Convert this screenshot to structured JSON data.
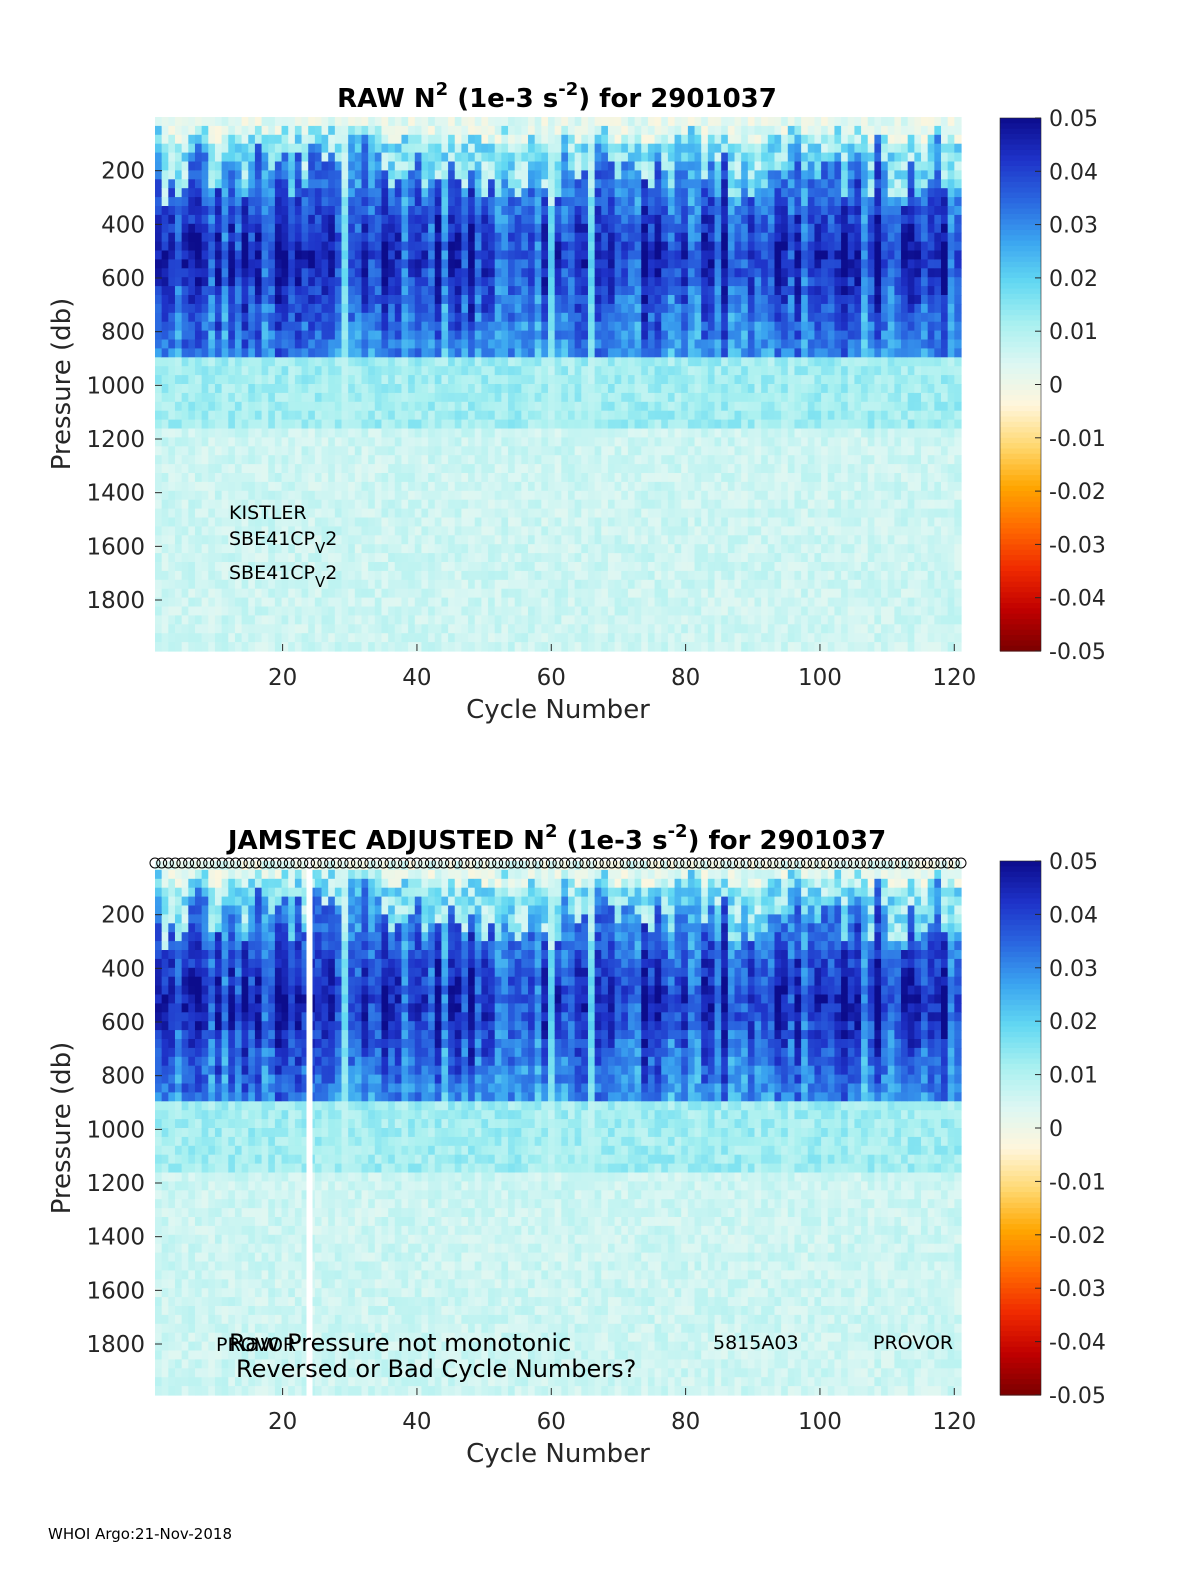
{
  "footer": "WHOI Argo:21-Nov-2018",
  "colors": {
    "colormap": [
      "#7a0000",
      "#c00000",
      "#f02a00",
      "#ff6a00",
      "#ffa600",
      "#ffd870",
      "#fff6dc",
      "#dcf7f3",
      "#a8f0f0",
      "#62d8f2",
      "#3aa4f0",
      "#2a66e0",
      "#1e32c8",
      "#0c0c8c"
    ],
    "gap_marker": "#ffffff",
    "text": "#262626"
  },
  "colorbar": {
    "ticks": [
      "0.05",
      "0.04",
      "0.03",
      "0.02",
      "0.01",
      "0",
      "-0.01",
      "-0.02",
      "-0.03",
      "-0.04",
      "-0.05"
    ],
    "range": [
      -0.05,
      0.05
    ]
  },
  "chart_data": [
    {
      "type": "heatmap",
      "title": {
        "main": "RAW N",
        "sup1": "2",
        "mid": " (1e-3 s",
        "sup2": "-2",
        "end": ") for 2901037"
      },
      "xlabel": "Cycle Number",
      "ylabel": "Pressure (db)",
      "xlim": [
        1,
        121
      ],
      "ylim": [
        1990,
        0
      ],
      "xticks": [
        "20",
        "40",
        "60",
        "80",
        "100",
        "120"
      ],
      "yticks": [
        "200",
        "400",
        "600",
        "800",
        "1000",
        "1200",
        "1400",
        "1600",
        "1800"
      ],
      "color_range": [
        -0.05,
        0.05
      ],
      "colorbar_ticks": [
        "0.05",
        "0.04",
        "0.03",
        "0.02",
        "0.01",
        "0",
        "-0.01",
        "-0.02",
        "-0.03",
        "-0.04",
        "-0.05"
      ],
      "field_description": {
        "surface_0_150db": "near 0 to slightly negative (pale yellow) with patches",
        "150_900db": "high stratification 0.03-0.05 (dark blue)",
        "900_1990db": "low 0.005-0.01 (light cyan)",
        "weak_columns_cycles": [
          29,
          60,
          66
        ],
        "data_gap_cycles": []
      },
      "annotations": [
        {
          "text": "KISTLER",
          "sub": "",
          "tail": ""
        },
        {
          "text": "SBE41CP",
          "sub": "V",
          "tail": "2"
        },
        {
          "text": "SBE41CP",
          "sub": "V",
          "tail": "2"
        }
      ]
    },
    {
      "type": "heatmap",
      "title": {
        "main": "JAMSTEC  ADJUSTED N",
        "sup1": "2",
        "mid": " (1e-3 s",
        "sup2": "-2",
        "end": ") for 2901037"
      },
      "xlabel": "Cycle Number",
      "ylabel": "Pressure (db)",
      "xlim": [
        1,
        121
      ],
      "ylim": [
        1990,
        0
      ],
      "xticks": [
        "20",
        "40",
        "60",
        "80",
        "100",
        "120"
      ],
      "yticks": [
        "200",
        "400",
        "600",
        "800",
        "1000",
        "1200",
        "1400",
        "1600",
        "1800"
      ],
      "color_range": [
        -0.05,
        0.05
      ],
      "colorbar_ticks": [
        "0.05",
        "0.04",
        "0.03",
        "0.02",
        "0.01",
        "0",
        "-0.01",
        "-0.02",
        "-0.03",
        "-0.04",
        "-0.05"
      ],
      "field_description": {
        "surface_0_150db": "near 0 to slightly negative (pale yellow) with patches",
        "150_900db": "high stratification 0.03-0.05 (dark blue)",
        "900_1990db": "low 0.005-0.01 (light cyan)",
        "weak_columns_cycles": [
          29,
          60,
          66
        ],
        "data_gap_cycles": [
          24
        ]
      },
      "top_markers": "open circles along the top edge, one per cycle",
      "annotations": [
        {
          "text": "PROVOR",
          "x_cycle": 11
        },
        {
          "text": "Raw Pressure not monotonic",
          "x_cycle": 13
        },
        {
          "text": "Reversed or Bad Cycle Numbers?",
          "x_cycle": 13
        },
        {
          "text": "5815A03",
          "x_cycle": 85
        },
        {
          "text": "PROVOR",
          "x_cycle": 109
        }
      ]
    }
  ]
}
